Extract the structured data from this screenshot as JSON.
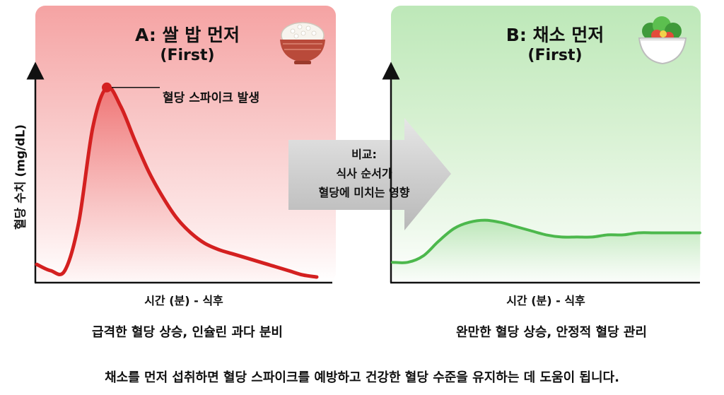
{
  "chart_data": [
    {
      "type": "area",
      "title": "A: 쌀 밥 먼저",
      "subtitle": "(First)",
      "ylabel": "혈당 수치 (mg/dL)",
      "xlabel": "시간 (분) - 식후",
      "annotation": "혈당 스파이크 발생",
      "caption": "급격한 혈당 상승, 인슐린 과다 분비",
      "color": "#d42020",
      "icon": "rice-bowl-icon",
      "ylim": [
        0,
        100
      ],
      "x": [
        0,
        5,
        10,
        15,
        20,
        25,
        30,
        35,
        40,
        45,
        50,
        55,
        60,
        65,
        70,
        75,
        80,
        85,
        90,
        95,
        100
      ],
      "values": [
        8,
        5,
        5,
        28,
        73,
        92,
        83,
        67,
        52,
        40,
        30,
        23,
        18,
        15,
        13,
        11,
        9,
        7,
        5,
        3,
        2
      ]
    },
    {
      "type": "area",
      "title": "B: 채소 먼저",
      "subtitle": "(First)",
      "xlabel": "시간 (분) - 식후",
      "caption": "완만한 혈당 상승, 안정적 혈당 관리",
      "color": "#4cb84c",
      "icon": "salad-bowl-icon",
      "ylim": [
        0,
        100
      ],
      "x": [
        0,
        5,
        10,
        15,
        20,
        25,
        30,
        35,
        40,
        45,
        50,
        55,
        60,
        65,
        70,
        75,
        80,
        85,
        90,
        95,
        100
      ],
      "values": [
        9,
        9,
        12,
        19,
        25,
        28,
        29,
        28,
        26,
        24,
        22,
        21,
        21,
        21,
        22,
        22,
        23,
        23,
        23,
        23,
        23
      ]
    }
  ],
  "comparison": {
    "lines": [
      "비교:",
      "식사 순서가",
      "혈당에 미치는 영향"
    ]
  },
  "footer": "채소를 먼저 섭취하면 혈당 스파이크를 예방하고 건강한 혈당 수준을 유지하는 데 도움이 됩니다."
}
